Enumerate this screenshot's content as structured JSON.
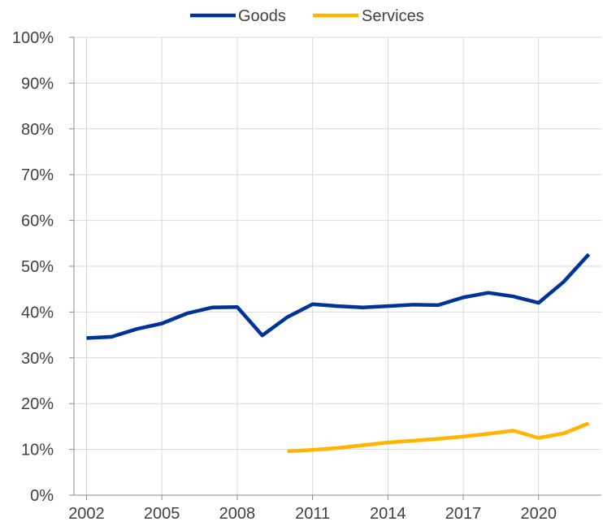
{
  "chart_data": {
    "type": "line",
    "title": "",
    "xlabel": "",
    "ylabel": "",
    "ylim": [
      0,
      100
    ],
    "y_ticks": [
      "0%",
      "10%",
      "20%",
      "30%",
      "40%",
      "50%",
      "60%",
      "70%",
      "80%",
      "90%",
      "100%"
    ],
    "x_ticks": [
      "2002",
      "2005",
      "2008",
      "2011",
      "2014",
      "2017",
      "2020"
    ],
    "x_range": [
      2002,
      2022
    ],
    "grid": "vertical and horizontal",
    "legend_position": "top",
    "series": [
      {
        "name": "Goods",
        "color": "#003399",
        "points": [
          [
            2002,
            34.3
          ],
          [
            2003,
            34.6
          ],
          [
            2004,
            36.3
          ],
          [
            2005,
            37.5
          ],
          [
            2006,
            39.7
          ],
          [
            2007,
            41.0
          ],
          [
            2008,
            41.1
          ],
          [
            2009,
            34.9
          ],
          [
            2010,
            38.9
          ],
          [
            2011,
            41.7
          ],
          [
            2012,
            41.3
          ],
          [
            2013,
            41.0
          ],
          [
            2014,
            41.3
          ],
          [
            2015,
            41.6
          ],
          [
            2016,
            41.5
          ],
          [
            2017,
            43.2
          ],
          [
            2018,
            44.2
          ],
          [
            2019,
            43.4
          ],
          [
            2020,
            42.0
          ],
          [
            2021,
            46.6
          ],
          [
            2022,
            52.6
          ]
        ]
      },
      {
        "name": "Services",
        "color": "#FFB400",
        "points": [
          [
            2010,
            9.6
          ],
          [
            2011,
            9.9
          ],
          [
            2012,
            10.3
          ],
          [
            2013,
            10.9
          ],
          [
            2014,
            11.5
          ],
          [
            2015,
            11.9
          ],
          [
            2016,
            12.3
          ],
          [
            2017,
            12.8
          ],
          [
            2018,
            13.4
          ],
          [
            2019,
            14.1
          ],
          [
            2020,
            12.5
          ],
          [
            2021,
            13.5
          ],
          [
            2022,
            15.7
          ]
        ]
      }
    ]
  }
}
